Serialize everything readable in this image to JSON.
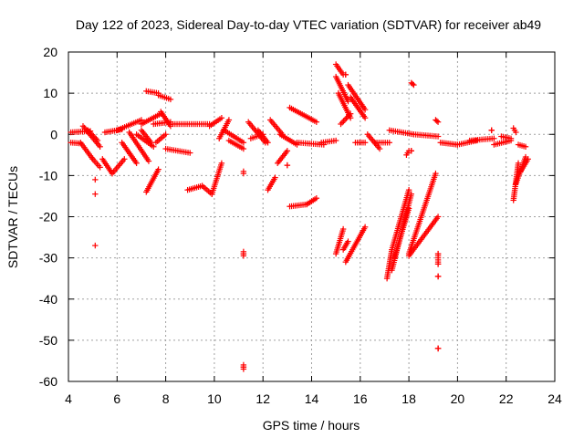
{
  "chart_data": {
    "type": "scatter",
    "title": "Day 122 of 2023, Sidereal Day-to-day VTEC variation (SDTVAR) for receiver ab49",
    "xlabel": "GPS time / hours",
    "ylabel": "SDTVAR / TECUs",
    "xlim": [
      4,
      24
    ],
    "ylim": [
      -60,
      20
    ],
    "xticks": [
      4,
      6,
      8,
      10,
      12,
      14,
      16,
      18,
      20,
      22,
      24
    ],
    "yticks": [
      -60,
      -50,
      -40,
      -30,
      -20,
      -10,
      0,
      10,
      20
    ],
    "xtick_labels": [
      "4",
      "6",
      "8",
      "10",
      "12",
      "14",
      "16",
      "18",
      "20",
      "22",
      "24"
    ],
    "ytick_labels": [
      "-60",
      "-50",
      "-40",
      "-30",
      "-20",
      "-10",
      "0",
      "10",
      "20"
    ],
    "grid": true,
    "marker": "+",
    "color": "#ff0000",
    "segments": [
      {
        "from": [
          4.1,
          0.5
        ],
        "to": [
          4.9,
          0.8
        ]
      },
      {
        "from": [
          4.1,
          -2.0
        ],
        "to": [
          4.5,
          -2.2
        ]
      },
      {
        "from": [
          4.5,
          -2.0
        ],
        "to": [
          5.0,
          -6.0
        ]
      },
      {
        "from": [
          5.0,
          -6.0
        ],
        "to": [
          5.3,
          -8.0
        ]
      },
      {
        "from": [
          4.6,
          2.0
        ],
        "to": [
          5.3,
          -3.0
        ]
      },
      {
        "from": [
          4.8,
          1.0
        ],
        "to": [
          5.2,
          -1.5
        ]
      },
      {
        "from": [
          5.5,
          0.5
        ],
        "to": [
          6.2,
          1.2
        ]
      },
      {
        "from": [
          5.4,
          -6.0
        ],
        "to": [
          5.8,
          -9.5
        ]
      },
      {
        "from": [
          5.8,
          -9.5
        ],
        "to": [
          6.3,
          -6.0
        ]
      },
      {
        "from": [
          6.0,
          1.0
        ],
        "to": [
          7.0,
          3.5
        ]
      },
      {
        "from": [
          6.2,
          -2.0
        ],
        "to": [
          6.8,
          -7.0
        ]
      },
      {
        "from": [
          6.5,
          0.5
        ],
        "to": [
          7.3,
          -6.5
        ]
      },
      {
        "from": [
          6.8,
          0.0
        ],
        "to": [
          7.5,
          -3.0
        ]
      },
      {
        "from": [
          7.0,
          2.5
        ],
        "to": [
          7.8,
          5.0
        ]
      },
      {
        "from": [
          7.2,
          10.5
        ],
        "to": [
          7.7,
          10.0
        ]
      },
      {
        "from": [
          7.7,
          9.5
        ],
        "to": [
          8.2,
          8.5
        ]
      },
      {
        "from": [
          7.0,
          1.0
        ],
        "to": [
          7.4,
          -2.0
        ]
      },
      {
        "from": [
          7.5,
          2.5
        ],
        "to": [
          8.2,
          3.0
        ]
      },
      {
        "from": [
          7.8,
          5.5
        ],
        "to": [
          8.2,
          2.0
        ]
      },
      {
        "from": [
          7.2,
          -14.0
        ],
        "to": [
          7.7,
          -8.5
        ]
      },
      {
        "from": [
          7.6,
          -2.0
        ],
        "to": [
          8.0,
          0.0
        ]
      },
      {
        "from": [
          8.0,
          -3.5
        ],
        "to": [
          9.0,
          -4.5
        ]
      },
      {
        "from": [
          8.3,
          2.5
        ],
        "to": [
          9.8,
          2.5
        ]
      },
      {
        "from": [
          8.9,
          -13.5
        ],
        "to": [
          9.5,
          -12.5
        ]
      },
      {
        "from": [
          9.5,
          -12.5
        ],
        "to": [
          9.9,
          -14.5
        ]
      },
      {
        "from": [
          9.9,
          -14.5
        ],
        "to": [
          10.3,
          -7.0
        ]
      },
      {
        "from": [
          9.8,
          2.0
        ],
        "to": [
          10.3,
          4.0
        ]
      },
      {
        "from": [
          10.2,
          -1.0
        ],
        "to": [
          10.6,
          3.5
        ]
      },
      {
        "from": [
          10.4,
          1.0
        ],
        "to": [
          11.2,
          -2.0
        ]
      },
      {
        "from": [
          10.6,
          -1.5
        ],
        "to": [
          11.2,
          -3.5
        ]
      },
      {
        "from": [
          11.2,
          -9.0
        ],
        "to": [
          11.2,
          -9.5
        ]
      },
      {
        "from": [
          11.2,
          -28.5
        ],
        "to": [
          11.2,
          -29.5
        ]
      },
      {
        "from": [
          11.2,
          -56.0
        ],
        "to": [
          11.2,
          -57.0
        ]
      },
      {
        "from": [
          11.4,
          3.0
        ],
        "to": [
          12.1,
          -2.0
        ]
      },
      {
        "from": [
          11.5,
          -1.0
        ],
        "to": [
          12.0,
          0.0
        ]
      },
      {
        "from": [
          11.8,
          1.0
        ],
        "to": [
          12.2,
          -2.0
        ]
      },
      {
        "from": [
          12.2,
          -13.5
        ],
        "to": [
          12.5,
          -10.5
        ]
      },
      {
        "from": [
          12.3,
          3.5
        ],
        "to": [
          12.8,
          0.0
        ]
      },
      {
        "from": [
          12.6,
          -7.0
        ],
        "to": [
          13.0,
          -4.0
        ]
      },
      {
        "from": [
          12.7,
          0.0
        ],
        "to": [
          13.4,
          -2.5
        ]
      },
      {
        "from": [
          13.0,
          -7.5
        ],
        "to": [
          13.0,
          -7.5
        ]
      },
      {
        "from": [
          13.1,
          6.5
        ],
        "to": [
          14.2,
          3.0
        ]
      },
      {
        "from": [
          13.1,
          -17.5
        ],
        "to": [
          13.8,
          -17.0
        ]
      },
      {
        "from": [
          13.8,
          -17.0
        ],
        "to": [
          14.2,
          -15.5
        ]
      },
      {
        "from": [
          13.4,
          -2.0
        ],
        "to": [
          14.5,
          -2.5
        ]
      },
      {
        "from": [
          14.4,
          -2.0
        ],
        "to": [
          15.0,
          -1.5
        ]
      },
      {
        "from": [
          15.0,
          17.0
        ],
        "to": [
          15.3,
          14.5
        ]
      },
      {
        "from": [
          15.0,
          14.0
        ],
        "to": [
          15.5,
          8.0
        ]
      },
      {
        "from": [
          15.1,
          10.0
        ],
        "to": [
          15.6,
          4.0
        ]
      },
      {
        "from": [
          15.2,
          2.5
        ],
        "to": [
          15.6,
          5.0
        ]
      },
      {
        "from": [
          15.4,
          14.5
        ],
        "to": [
          15.4,
          14.5
        ]
      },
      {
        "from": [
          15.5,
          12.0
        ],
        "to": [
          16.2,
          6.0
        ]
      },
      {
        "from": [
          15.6,
          9.0
        ],
        "to": [
          16.2,
          4.0
        ]
      },
      {
        "from": [
          15.0,
          -29.0
        ],
        "to": [
          15.3,
          -23.0
        ]
      },
      {
        "from": [
          15.3,
          -28.0
        ],
        "to": [
          15.5,
          -26.0
        ]
      },
      {
        "from": [
          15.4,
          -31.0
        ],
        "to": [
          16.2,
          -22.5
        ]
      },
      {
        "from": [
          15.8,
          -2.0
        ],
        "to": [
          16.2,
          -2.0
        ]
      },
      {
        "from": [
          16.3,
          0.0
        ],
        "to": [
          16.8,
          -3.5
        ]
      },
      {
        "from": [
          16.6,
          -2.0
        ],
        "to": [
          17.2,
          -2.0
        ]
      },
      {
        "from": [
          17.2,
          1.0
        ],
        "to": [
          18.2,
          0.0
        ]
      },
      {
        "from": [
          17.1,
          -35.0
        ],
        "to": [
          17.3,
          -28.0
        ]
      },
      {
        "from": [
          17.3,
          -28.0
        ],
        "to": [
          18.0,
          -13.5
        ]
      },
      {
        "from": [
          17.3,
          -33.0
        ],
        "to": [
          18.1,
          -14.5
        ]
      },
      {
        "from": [
          17.4,
          -30.0
        ],
        "to": [
          18.0,
          -18.0
        ]
      },
      {
        "from": [
          17.9,
          -5.0
        ],
        "to": [
          18.0,
          -4.0
        ]
      },
      {
        "from": [
          18.1,
          -4.0
        ],
        "to": [
          18.1,
          -4.0
        ]
      },
      {
        "from": [
          18.0,
          -29.5
        ],
        "to": [
          19.2,
          -20.0
        ]
      },
      {
        "from": [
          18.0,
          -29.0
        ],
        "to": [
          19.1,
          -9.5
        ]
      },
      {
        "from": [
          18.1,
          12.5
        ],
        "to": [
          18.2,
          12.0
        ]
      },
      {
        "from": [
          18.2,
          0.0
        ],
        "to": [
          19.2,
          -0.5
        ]
      },
      {
        "from": [
          19.1,
          3.5
        ],
        "to": [
          19.2,
          3.0
        ]
      },
      {
        "from": [
          19.2,
          -29.0
        ],
        "to": [
          19.2,
          -31.5
        ]
      },
      {
        "from": [
          19.2,
          -34.5
        ],
        "to": [
          19.2,
          -34.5
        ]
      },
      {
        "from": [
          19.2,
          -52.0
        ],
        "to": [
          19.2,
          -52.0
        ]
      },
      {
        "from": [
          19.3,
          -2.0
        ],
        "to": [
          20.0,
          -2.5
        ]
      },
      {
        "from": [
          20.0,
          -2.5
        ],
        "to": [
          20.8,
          -1.5
        ]
      },
      {
        "from": [
          20.5,
          -1.5
        ],
        "to": [
          21.5,
          -1.0
        ]
      },
      {
        "from": [
          21.4,
          1.0
        ],
        "to": [
          21.4,
          1.0
        ]
      },
      {
        "from": [
          21.5,
          -2.5
        ],
        "to": [
          22.2,
          -1.5
        ]
      },
      {
        "from": [
          21.8,
          -0.5
        ],
        "to": [
          22.2,
          -1.0
        ]
      },
      {
        "from": [
          22.3,
          1.5
        ],
        "to": [
          22.4,
          0.5
        ]
      },
      {
        "from": [
          22.5,
          -2.5
        ],
        "to": [
          22.8,
          -3.0
        ]
      },
      {
        "from": [
          22.3,
          -16.0
        ],
        "to": [
          22.5,
          -7.0
        ]
      },
      {
        "from": [
          22.4,
          -12.0
        ],
        "to": [
          22.8,
          -5.5
        ]
      },
      {
        "from": [
          22.6,
          -9.0
        ],
        "to": [
          22.9,
          -6.0
        ]
      }
    ],
    "isolated_points": [
      {
        "x": 5.1,
        "y": -11.0
      },
      {
        "x": 5.1,
        "y": -14.5
      },
      {
        "x": 5.1,
        "y": -27.0
      },
      {
        "x": 11.2,
        "y": -29.0
      },
      {
        "x": 11.2,
        "y": -56.5
      },
      {
        "x": 19.2,
        "y": -29.0
      },
      {
        "x": 19.2,
        "y": -31.5
      },
      {
        "x": 19.2,
        "y": -34.5
      },
      {
        "x": 19.2,
        "y": -52.0
      }
    ]
  }
}
